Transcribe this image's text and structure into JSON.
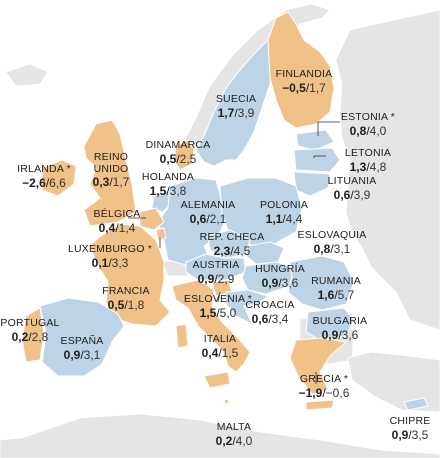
{
  "colors": {
    "sea": "#ffffff",
    "land_other": "#e5e5e5",
    "positive": "#bcd4e5",
    "negative": "#f0c288",
    "border": "#ffffff",
    "leader": "#333333"
  },
  "countries": [
    {
      "id": "suecia",
      "name": "SUECIA",
      "v1": "1,7",
      "v2": "3,9",
      "color": "positive"
    },
    {
      "id": "finlandia",
      "name": "FINLANDIA",
      "v1": "−0,5",
      "v2": "1,7",
      "color": "negative"
    },
    {
      "id": "dinamarca",
      "name": "DINAMARCA",
      "v1": "0,5",
      "v2": "2,5",
      "color": "negative"
    },
    {
      "id": "estonia",
      "name": "ESTONIA *",
      "v1": "0,8",
      "v2": "4,0",
      "color": "positive"
    },
    {
      "id": "letonia",
      "name": "LETONIA",
      "v1": "1,3",
      "v2": "4,8",
      "color": "positive"
    },
    {
      "id": "lituania",
      "name": "LITUANIA",
      "v1": "0,6",
      "v2": "3,9",
      "color": "positive"
    },
    {
      "id": "irlanda",
      "name": "IRLANDA *",
      "v1": "−2,6",
      "v2": "6,6",
      "color": "negative"
    },
    {
      "id": "reino_unido",
      "name": "REINO\nUNIDO",
      "v1": "0,3",
      "v2": "1,7",
      "color": "negative"
    },
    {
      "id": "holanda",
      "name": "HOLANDA",
      "v1": "1,5",
      "v2": "3,8",
      "color": "positive"
    },
    {
      "id": "alemania",
      "name": "ALEMANIA",
      "v1": "0,6",
      "v2": "2,1",
      "color": "positive"
    },
    {
      "id": "polonia",
      "name": "POLONIA",
      "v1": "1,1",
      "v2": "4,4",
      "color": "positive"
    },
    {
      "id": "belgica",
      "name": "BÉLGICA",
      "v1": "0,4",
      "v2": "1,4",
      "color": "negative"
    },
    {
      "id": "rep_checa",
      "name": "REP. CHECA",
      "v1": "2,3",
      "v2": "4,5",
      "color": "positive"
    },
    {
      "id": "eslovaquia",
      "name": "ESLOVAQUIA",
      "v1": "0,8",
      "v2": "3,1",
      "color": "positive"
    },
    {
      "id": "luxemburgo",
      "name": "LUXEMBURGO *",
      "v1": "0,1",
      "v2": "3,3",
      "color": "negative"
    },
    {
      "id": "austria",
      "name": "AUSTRIA",
      "v1": "0,9",
      "v2": "2,9",
      "color": "positive"
    },
    {
      "id": "hungria",
      "name": "HUNGRÍA",
      "v1": "0,9",
      "v2": "3,6",
      "color": "positive"
    },
    {
      "id": "rumania",
      "name": "RUMANIA",
      "v1": "1,6",
      "v2": "5,7",
      "color": "positive"
    },
    {
      "id": "francia",
      "name": "FRANCIA",
      "v1": "0,5",
      "v2": "1,8",
      "color": "negative"
    },
    {
      "id": "eslovenia",
      "name": "ESLOVENIA *",
      "v1": "1,5",
      "v2": "5,0",
      "color": "negative"
    },
    {
      "id": "croacia",
      "name": "CROACIA",
      "v1": "0,6",
      "v2": "3,4",
      "color": "positive"
    },
    {
      "id": "bulgaria",
      "name": "BULGARIA",
      "v1": "0,9",
      "v2": "3,6",
      "color": "positive"
    },
    {
      "id": "portugal",
      "name": "PORTUGAL",
      "v1": "0,2",
      "v2": "2,8",
      "color": "negative"
    },
    {
      "id": "espana",
      "name": "ESPAÑA",
      "v1": "0,9",
      "v2": "3,1",
      "color": "positive"
    },
    {
      "id": "italia",
      "name": "ITALIA",
      "v1": "0,4",
      "v2": "1,5",
      "color": "negative"
    },
    {
      "id": "grecia",
      "name": "GRECIA *",
      "v1": "−1,9",
      "v2": "−0,6",
      "color": "negative"
    },
    {
      "id": "malta",
      "name": "MALTA",
      "v1": "0,2",
      "v2": "4,0",
      "color": "negative"
    },
    {
      "id": "chipre",
      "name": "CHIPRE",
      "v1": "0,9",
      "v2": "3,5",
      "color": "positive"
    }
  ]
}
